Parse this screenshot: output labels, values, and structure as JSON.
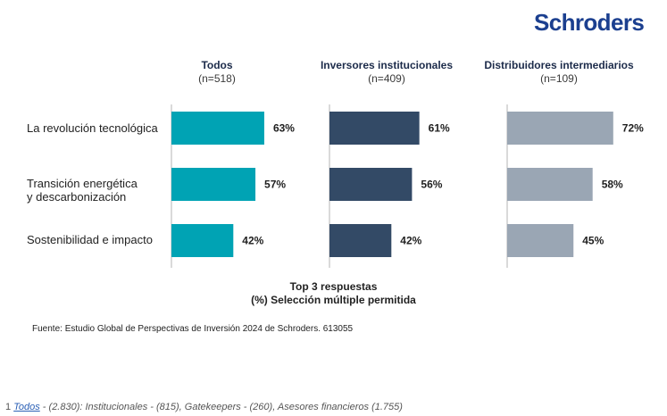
{
  "brand": {
    "logo_text": "Schroders",
    "logo_color": "#1b3f8f"
  },
  "chart_data": {
    "type": "bar",
    "orientation": "horizontal",
    "categories": [
      "La revolución tecnológica",
      "Transición energética\ny descarbonización",
      "Sostenibilidad e impacto"
    ],
    "series": [
      {
        "name": "Todos",
        "n_label": "(n=518)",
        "color": "#00a3b4",
        "values": [
          63,
          57,
          42
        ]
      },
      {
        "name": "Inversores institucionales",
        "n_label": "(n=409)",
        "color": "#334a66",
        "values": [
          61,
          56,
          42
        ]
      },
      {
        "name": "Distribuidores intermediarios",
        "n_label": "(n=109)",
        "color": "#9aa6b4",
        "values": [
          72,
          58,
          45
        ]
      }
    ],
    "value_suffix": "%",
    "xlim": [
      0,
      100
    ],
    "caption_line1": "Top 3 respuestas",
    "caption_line2": "(%) Selección múltiple permitida",
    "source": "Fuente: Estudio Global de Perspectivas de Inversión 2024 de Schroders. 613055"
  },
  "footnote": {
    "number": "1",
    "link": "Todos",
    "text": " - (2.830): Institucionales - (815), Gatekeepers - (260), Asesores financieros (1.755)"
  }
}
